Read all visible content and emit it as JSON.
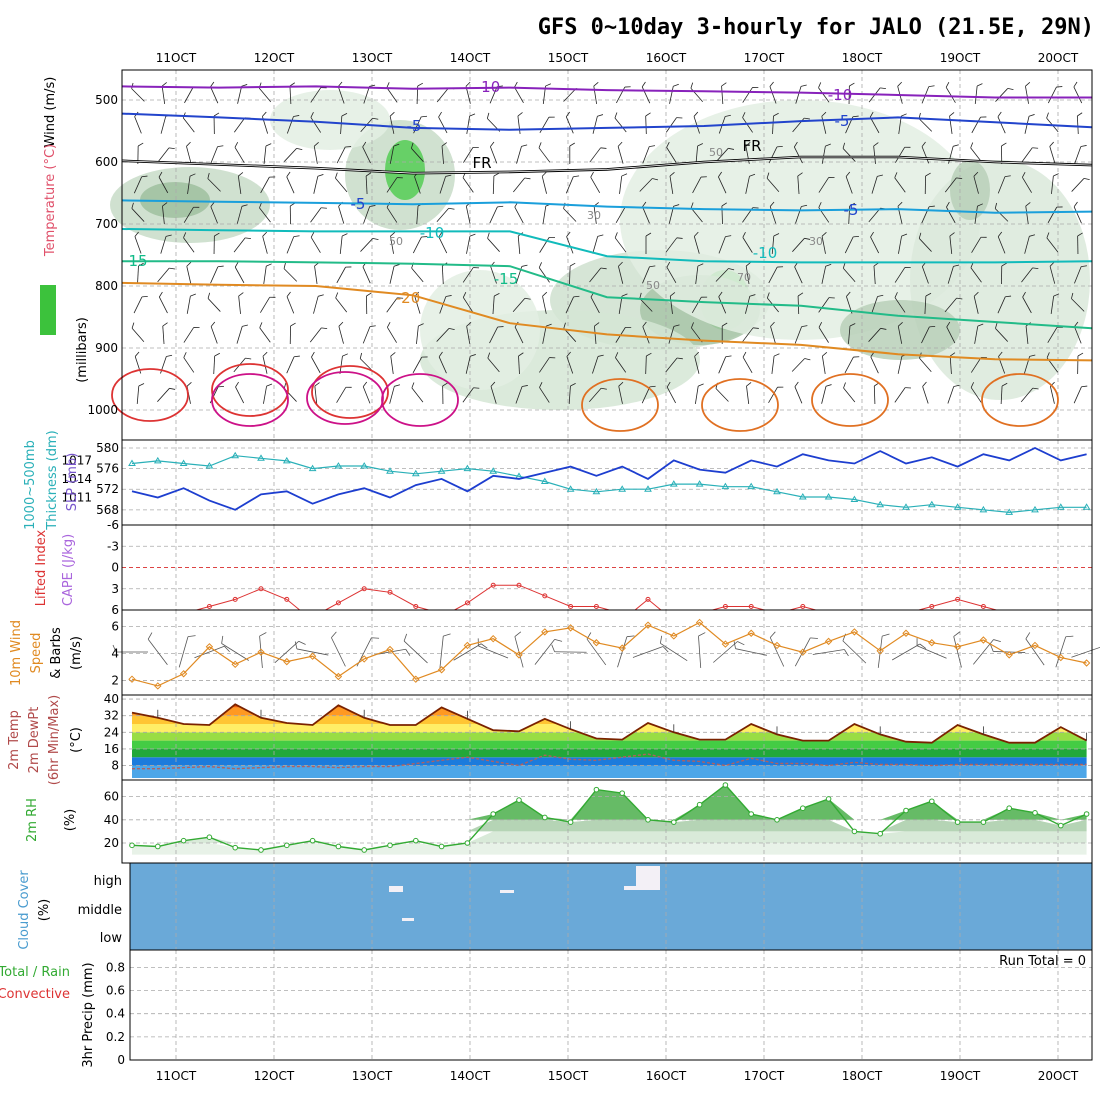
{
  "title": "GFS 0~10day 3-hourly for JALO (21.5E, 29N)",
  "chart_data": [
    {
      "panel": "upper_air",
      "type": "heatmap",
      "x_ticks": [
        "11OCT",
        "12OCT",
        "13OCT",
        "14OCT",
        "15OCT",
        "16OCT",
        "17OCT",
        "18OCT",
        "19OCT",
        "20OCT"
      ],
      "y_label": "(millibars)",
      "y_ticks": [
        500,
        600,
        700,
        800,
        900,
        1000
      ],
      "legend_labels": [
        "Wind (m/s)",
        "Temperature (°C)",
        "RH (%)"
      ],
      "contour_labels": [
        "-10",
        "-10",
        "-5",
        "-5",
        "FR",
        "FR",
        "-5",
        "-5",
        "-10",
        "-10",
        "15",
        "-15",
        "-20",
        "30",
        "30",
        "50",
        "50",
        "50",
        "70"
      ],
      "isotherms": [
        {
          "label": "-10",
          "color": "#8822bb",
          "p": [
            478,
            480,
            478,
            482,
            480,
            484,
            486,
            488,
            492,
            496,
            496
          ]
        },
        {
          "label": "-5",
          "color": "#2244cc",
          "p": [
            522,
            528,
            535,
            545,
            548,
            545,
            542,
            534,
            528,
            536,
            544
          ]
        },
        {
          "label": "FR",
          "color": "#000000",
          "p": [
            598,
            604,
            610,
            618,
            616,
            612,
            600,
            592,
            592,
            600,
            605
          ]
        },
        {
          "label": "5",
          "color": "#1a9fdb",
          "p": [
            662,
            664,
            666,
            668,
            665,
            672,
            676,
            678,
            676,
            682,
            680
          ]
        },
        {
          "label": "10",
          "color": "#11bbbb",
          "p": [
            708,
            710,
            712,
            712,
            712,
            752,
            760,
            762,
            762,
            762,
            760
          ]
        },
        {
          "label": "15",
          "color": "#22bb88",
          "p": [
            760,
            760,
            762,
            764,
            768,
            818,
            826,
            832,
            848,
            858,
            868
          ]
        },
        {
          "label": "20",
          "color": "#e08a22",
          "p": [
            795,
            798,
            800,
            815,
            860,
            878,
            888,
            895,
            910,
            918,
            920
          ]
        }
      ]
    },
    {
      "panel": "thickness_slp",
      "type": "line",
      "y_labels": [
        "1000~500mb",
        "Thickness (dm)",
        "SLP (mb)"
      ],
      "y_ticks_thickness": [
        568,
        572,
        576,
        580
      ],
      "y_ticks_slp": [
        1011,
        1014,
        1017
      ],
      "series": [
        {
          "name": "Thickness",
          "color": "#2ab0b8",
          "values": [
            577.0,
            577.5,
            577.0,
            576.5,
            578.5,
            578.0,
            577.5,
            576.0,
            576.5,
            576.5,
            575.5,
            575.0,
            575.5,
            576.0,
            575.5,
            574.5,
            573.5,
            572.0,
            571.5,
            572.0,
            572.0,
            573.0,
            573.0,
            572.5,
            572.5,
            571.5,
            570.5,
            570.5,
            570.0,
            569.0,
            568.5,
            569.0,
            568.5,
            568.0,
            567.5,
            568.0,
            568.5,
            568.5
          ]
        },
        {
          "name": "SLP",
          "color": "#1d3ecf",
          "values": [
            1012.0,
            1011.0,
            1012.5,
            1010.5,
            1009.0,
            1011.5,
            1012.0,
            1010.0,
            1011.5,
            1012.5,
            1011.0,
            1013.0,
            1014.0,
            1012.0,
            1014.5,
            1014.0,
            1015.0,
            1016.0,
            1014.5,
            1016.0,
            1014.0,
            1017.0,
            1015.5,
            1015.0,
            1017.0,
            1016.0,
            1018.0,
            1017.0,
            1016.5,
            1018.5,
            1016.5,
            1017.5,
            1016.0,
            1018.0,
            1017.0,
            1019.0,
            1017.0,
            1018.0
          ]
        }
      ]
    },
    {
      "panel": "li_cape",
      "type": "line",
      "y_labels": [
        "Lifted Index",
        "CAPE (J/kg)"
      ],
      "y_ticks": [
        "-6",
        "-3",
        "0",
        "3",
        "6"
      ],
      "zero_line_color": "#dd4444",
      "series": [
        {
          "name": "Lifted Index",
          "color": "#dd3333",
          "values": [
            6.0,
            6.0,
            6.0,
            5.5,
            4.5,
            3.0,
            4.5,
            6.0,
            5.0,
            3.0,
            3.5,
            5.5,
            6.0,
            5.0,
            2.5,
            2.5,
            4.0,
            5.5,
            5.5,
            6.0,
            4.5,
            6.0,
            6.0,
            5.5,
            5.5,
            6.0,
            5.5,
            6.0,
            6.0,
            6.0,
            6.0,
            5.5,
            4.5,
            5.5,
            6.0,
            6.0,
            6.0,
            6.0
          ]
        }
      ]
    },
    {
      "panel": "wind10m",
      "type": "line",
      "y_labels": [
        "10m Wind",
        "Speed",
        "& Barbs",
        "(m/s)"
      ],
      "y_ticks": [
        2,
        4,
        6
      ],
      "series": [
        {
          "name": "10m Wind Speed",
          "color": "#e08a22",
          "values": [
            2.1,
            1.6,
            2.5,
            4.5,
            3.2,
            4.1,
            3.4,
            3.8,
            2.3,
            3.6,
            4.3,
            2.1,
            2.8,
            4.6,
            5.1,
            3.9,
            5.6,
            5.9,
            4.8,
            4.4,
            6.1,
            5.3,
            6.3,
            4.7,
            5.5,
            4.6,
            4.1,
            4.9,
            5.6,
            4.2,
            5.5,
            4.8,
            4.5,
            5.0,
            3.9,
            4.6,
            3.7,
            3.3
          ]
        }
      ]
    },
    {
      "panel": "temp2m",
      "type": "area",
      "y_labels": [
        "2m Temp",
        "2m DewPt",
        "(6hr Min/Max)",
        "(°C)"
      ],
      "y_ticks": [
        8,
        16,
        24,
        32,
        40
      ],
      "band_colors": [
        "#4da6e8",
        "#1c7bdc",
        "#22a83a",
        "#44cc44",
        "#99dd44",
        "#ffee66",
        "#ffc533",
        "#ff9922",
        "#ee5500",
        "#cc0000"
      ],
      "series": [
        {
          "name": "2m Temp",
          "color": "#7a2200",
          "values": [
            33.5,
            31.0,
            28.0,
            27.5,
            37.5,
            31.0,
            28.5,
            27.5,
            37.0,
            31.0,
            27.5,
            27.5,
            36.0,
            30.5,
            25.0,
            24.5,
            30.5,
            25.5,
            21.0,
            20.5,
            28.5,
            24.0,
            20.5,
            20.5,
            28.0,
            23.0,
            20.0,
            20.0,
            28.0,
            23.0,
            19.5,
            19.0,
            27.5,
            23.0,
            19.0,
            19.0,
            26.5,
            20.0
          ]
        },
        {
          "name": "2m DewPt",
          "color": "#b06060",
          "values": [
            6.5,
            6.5,
            7.0,
            7.5,
            6.5,
            7.0,
            7.5,
            7.5,
            7.0,
            7.5,
            7.5,
            9.0,
            10.5,
            12.0,
            10.0,
            8.0,
            13.0,
            11.0,
            10.5,
            12.0,
            13.5,
            10.5,
            10.0,
            8.0,
            11.5,
            9.0,
            9.0,
            8.0,
            9.5,
            8.5,
            8.5,
            8.0,
            8.5,
            8.5,
            8.5,
            8.5,
            8.5,
            8.5
          ]
        }
      ]
    },
    {
      "panel": "rh2m",
      "type": "area",
      "y_labels": [
        "2m RH",
        "(%)"
      ],
      "y_ticks": [
        20,
        40,
        60
      ],
      "series": [
        {
          "name": "2m RH",
          "color": "#33aa33",
          "values": [
            18,
            17,
            22,
            25,
            16,
            14,
            18,
            22,
            17,
            14,
            18,
            22,
            17,
            20,
            45,
            57,
            42,
            38,
            66,
            63,
            40,
            38,
            53,
            70,
            45,
            40,
            50,
            58,
            30,
            28,
            48,
            56,
            38,
            38,
            50,
            46,
            35,
            45
          ]
        }
      ]
    },
    {
      "panel": "cloud_cover",
      "type": "heatmap",
      "y_labels": [
        "Cloud Cover",
        "(%)"
      ],
      "y_ticks": [
        "high",
        "middle",
        "low"
      ],
      "background_color": "#6aa9d8"
    },
    {
      "panel": "precip",
      "type": "bar",
      "y_labels": [
        "Total / Rain",
        "Convective",
        "3hr Precip (mm)"
      ],
      "y_ticks": [
        "0",
        "0.2",
        "0.4",
        "0.6",
        "0.8"
      ],
      "values": [],
      "annotation": "Run Total = 0"
    }
  ]
}
